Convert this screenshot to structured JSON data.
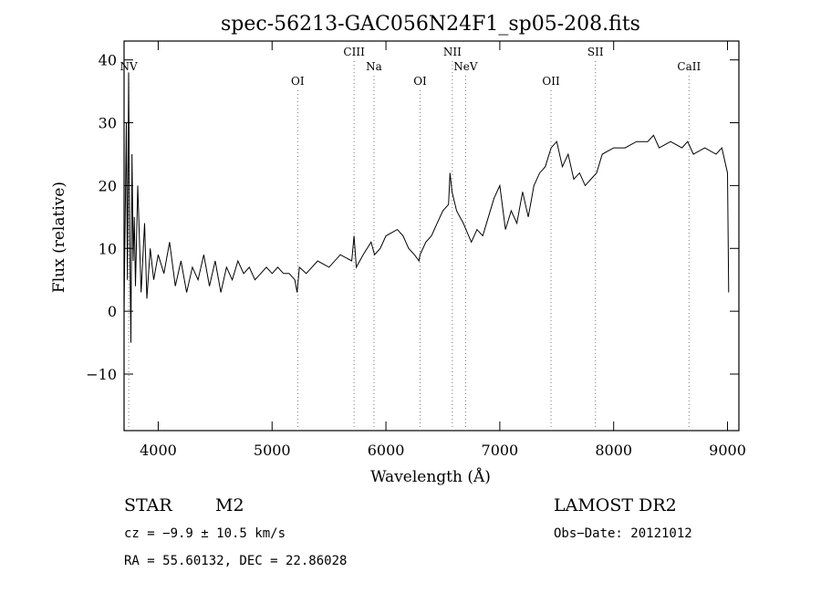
{
  "chart_data": {
    "type": "line",
    "title": "spec-56213-GAC056N24F1_sp05-208.fits",
    "xlabel": "Wavelength (Å)",
    "ylabel": "Flux (relative)",
    "xlim": [
      3700,
      9100
    ],
    "ylim": [
      -19,
      43
    ],
    "xticks": [
      4000,
      5000,
      6000,
      7000,
      8000,
      9000
    ],
    "yticks": [
      -10,
      0,
      10,
      20,
      30,
      40
    ],
    "grid": false,
    "line_color": "#000000",
    "series": [
      {
        "x": [
          3700,
          3720,
          3730,
          3740,
          3750,
          3760,
          3770,
          3780,
          3790,
          3800,
          3820,
          3850,
          3880,
          3900,
          3930,
          3960,
          4000,
          4050,
          4100,
          4150,
          4200,
          4250,
          4300,
          4350,
          4400,
          4450,
          4500,
          4550,
          4600,
          4650,
          4700,
          4750,
          4800,
          4850,
          4900,
          4950,
          5000,
          5050,
          5100,
          5150,
          5200,
          5220,
          5240,
          5300,
          5400,
          5500,
          5600,
          5700,
          5720,
          5740,
          5800,
          5870,
          5900,
          5950,
          6000,
          6100,
          6150,
          6200,
          6250,
          6290,
          6300,
          6350,
          6400,
          6450,
          6500,
          6550,
          6563,
          6580,
          6620,
          6680,
          6750,
          6800,
          6850,
          6900,
          6950,
          7000,
          7050,
          7100,
          7150,
          7200,
          7250,
          7300,
          7350,
          7400,
          7450,
          7500,
          7550,
          7600,
          7650,
          7700,
          7750,
          7800,
          7850,
          7900,
          8000,
          8100,
          8200,
          8300,
          8350,
          8400,
          8500,
          8600,
          8650,
          8700,
          8800,
          8900,
          8950,
          9000,
          9010
        ],
        "y": [
          0,
          30,
          5,
          38,
          12,
          -5,
          25,
          8,
          15,
          4,
          20,
          3,
          14,
          2,
          10,
          5,
          9,
          6,
          11,
          4,
          8,
          3,
          7,
          5,
          9,
          4,
          8,
          3,
          7,
          5,
          8,
          6,
          7,
          5,
          6,
          7,
          6,
          7,
          6,
          6,
          5,
          3,
          7,
          6,
          8,
          7,
          9,
          8,
          12,
          7,
          9,
          11,
          9,
          10,
          12,
          13,
          12,
          10,
          9,
          8,
          9,
          11,
          12,
          14,
          16,
          17,
          22,
          19,
          16,
          14,
          11,
          13,
          12,
          15,
          18,
          20,
          13,
          16,
          14,
          19,
          15,
          20,
          22,
          23,
          26,
          27,
          23,
          25,
          21,
          22,
          20,
          21,
          22,
          25,
          26,
          26,
          27,
          27,
          28,
          26,
          27,
          26,
          27,
          25,
          26,
          25,
          26,
          22,
          3
        ]
      }
    ],
    "annotations": [
      {
        "label": "NV",
        "wavelength": 3741
      },
      {
        "label": "OI",
        "wavelength": 5225
      },
      {
        "label": "CIII",
        "wavelength": 5720
      },
      {
        "label": "Na",
        "wavelength": 5895
      },
      {
        "label": "OI",
        "wavelength": 6300
      },
      {
        "label": "NII",
        "wavelength": 6583
      },
      {
        "label": "NeV",
        "wavelength": 6700
      },
      {
        "label": "OII",
        "wavelength": 7450
      },
      {
        "label": "SII",
        "wavelength": 7840
      },
      {
        "label": "CaII",
        "wavelength": 8662
      }
    ]
  },
  "info": {
    "object_class": "STAR",
    "subclass": "M2",
    "survey": "LAMOST DR2",
    "cz_line": "cz = −9.9 ± 10.5 km/s",
    "obs_date": "Obs−Date: 20121012",
    "coords": "RA =  55.60132, DEC =  22.86028"
  }
}
